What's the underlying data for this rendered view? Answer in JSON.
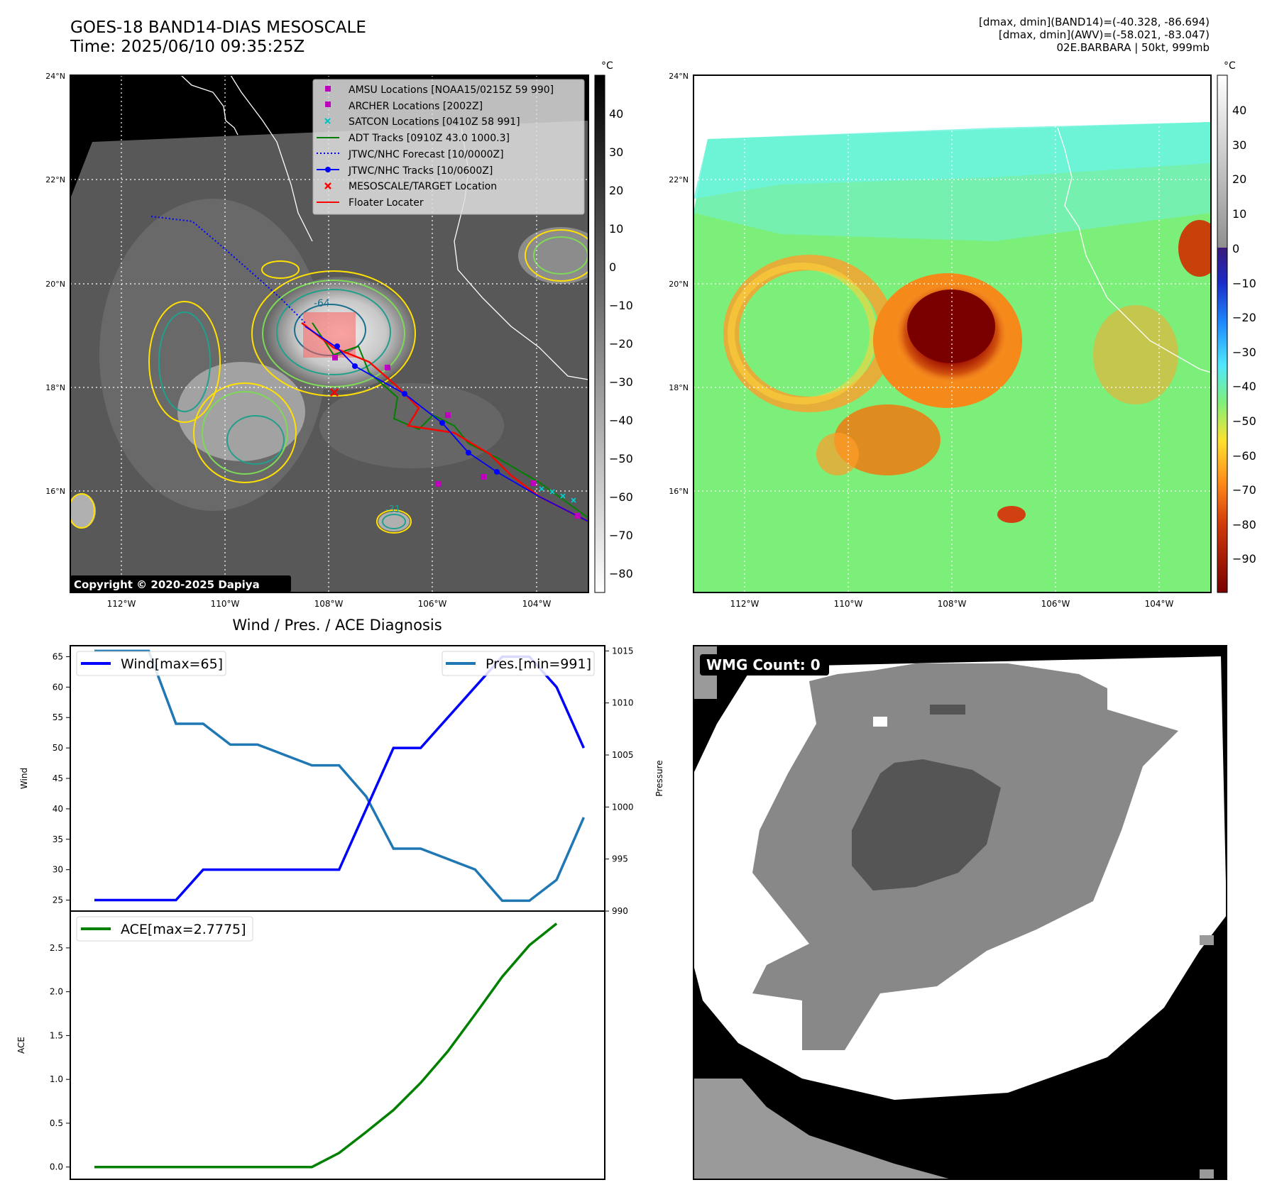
{
  "header": {
    "title_line1": "GOES-18 BAND14-DIAS MESOSCALE",
    "title_line2": "Time: 2025/06/10 09:35:25Z",
    "info_line1": "[dmax, dmin](BAND14)=(-40.328, -86.694)",
    "info_line2": "[dmax, dmin](AWV)=(-58.021, -83.047)",
    "info_line3": "02E.BARBARA | 50kt, 999mb"
  },
  "map_axes": {
    "lat_labels": [
      "24°N",
      "22°N",
      "20°N",
      "18°N",
      "16°N"
    ],
    "lon_labels": [
      "112°W",
      "110°W",
      "108°W",
      "106°W",
      "104°W"
    ]
  },
  "ir_panel": {
    "colorbar_unit": "°C",
    "colorbar_ticks": [
      "40",
      "30",
      "20",
      "10",
      "0",
      "−10",
      "−20",
      "−30",
      "−40",
      "−50",
      "−60",
      "−70",
      "−80"
    ],
    "copyright": "Copyright © 2020-2025 Dapiya",
    "contour_labels": [
      "-64",
      "-31"
    ],
    "legend": [
      {
        "label": "AMSU Locations [NOAA15/0215Z 59 990]",
        "color": "#bf00bf",
        "marker": "square"
      },
      {
        "label": "ARCHER Locations [2002Z]",
        "color": "#bf00bf",
        "marker": "square"
      },
      {
        "label": "SATCON Locations [0410Z 58 991]",
        "color": "#00bfbf",
        "marker": "x"
      },
      {
        "label": "ADT Tracks [0910Z 43.0 1000.3]",
        "color": "#008000",
        "marker": "line"
      },
      {
        "label": "JTWC/NHC Forecast [10/0000Z]",
        "color": "#0000ff",
        "marker": "dotted"
      },
      {
        "label": "JTWC/NHC Tracks [10/0600Z]",
        "color": "#0000ff",
        "marker": "line-dot"
      },
      {
        "label": "MESOSCALE/TARGET Location",
        "color": "#ff0000",
        "marker": "x"
      },
      {
        "label": "Floater Locater",
        "color": "#ff0000",
        "marker": "line"
      }
    ]
  },
  "awv_panel": {
    "colorbar_unit": "°C",
    "colorbar_ticks": [
      "40",
      "30",
      "20",
      "10",
      "0",
      "−10",
      "−20",
      "−30",
      "−40",
      "−50",
      "−60",
      "−70",
      "−80",
      "−90"
    ]
  },
  "wmg_panel": {
    "label": "WMG Count: 0"
  },
  "chart_data": [
    {
      "type": "line",
      "title": "Wind / Pres. / ACE Diagnosis",
      "x": [
        0,
        1,
        2,
        3,
        4,
        5,
        6,
        7,
        8,
        9,
        10,
        11,
        12,
        13,
        14,
        15,
        16,
        17,
        18
      ],
      "series": [
        {
          "name": "Wind[max=65]",
          "axis": "left",
          "color": "#0000ff",
          "values": [
            25,
            25,
            25,
            25,
            30,
            30,
            30,
            30,
            30,
            30,
            40,
            50,
            50,
            55,
            60,
            65,
            65,
            60,
            50
          ]
        },
        {
          "name": "Pres.[min=991]",
          "axis": "right",
          "color": "#1f77b4",
          "values": [
            1015,
            1015,
            1015,
            1008,
            1008,
            1006,
            1006,
            1005,
            1004,
            1004,
            1001,
            996,
            996,
            995,
            994,
            991,
            991,
            993,
            999
          ]
        }
      ],
      "ylabel": "Wind",
      "ylabel_right": "Pressure",
      "ylim": [
        23.2,
        66.8
      ],
      "ylim_right": [
        990,
        1015.5
      ],
      "yticks": [
        25,
        30,
        35,
        40,
        45,
        50,
        55,
        60,
        65
      ],
      "yticks_right": [
        990,
        995,
        1000,
        1005,
        1010,
        1015
      ],
      "legend_position": [
        "top-left",
        "top-right"
      ]
    },
    {
      "type": "line",
      "series": [
        {
          "name": "ACE[max=2.7775]",
          "color": "#008000",
          "values": [
            0,
            0,
            0,
            0,
            0,
            0,
            0,
            0,
            0,
            0.16,
            0.4,
            0.65,
            0.96,
            1.32,
            1.74,
            2.17,
            2.53,
            2.7775
          ]
        }
      ],
      "ylabel": "ACE",
      "ylim": [
        -0.14,
        2.92
      ],
      "yticks": [
        0.0,
        0.5,
        1.0,
        1.5,
        2.0,
        2.5
      ],
      "legend_position": "top-left"
    }
  ]
}
